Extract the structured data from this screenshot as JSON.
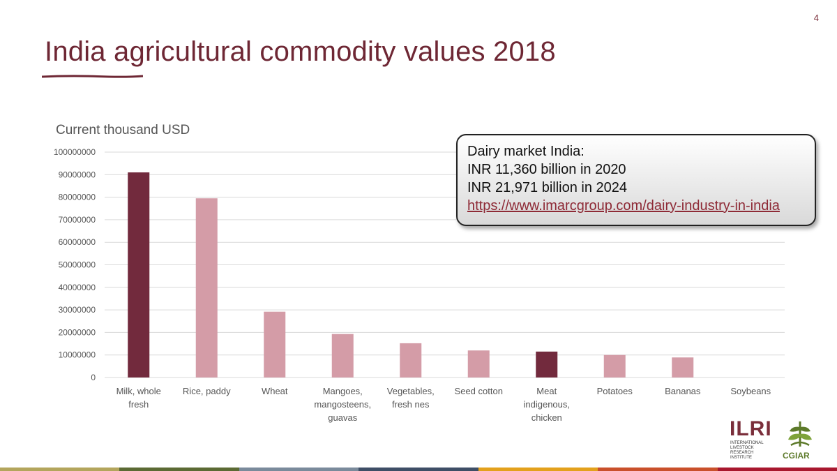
{
  "page_number": "4",
  "title": "India agricultural commodity values 2018",
  "chart_data": {
    "type": "bar",
    "title": "",
    "subtitle": "Current thousand USD",
    "ylim": [
      0,
      100000000
    ],
    "y_ticks": [
      "0",
      "10000000",
      "20000000",
      "30000000",
      "40000000",
      "50000000",
      "60000000",
      "70000000",
      "80000000",
      "90000000",
      "100000000"
    ],
    "grid": true,
    "categories": [
      [
        "Milk, whole",
        "fresh"
      ],
      [
        "Rice, paddy"
      ],
      [
        "Wheat"
      ],
      [
        "Mangoes,",
        "mangosteens,",
        "guavas"
      ],
      [
        "Vegetables,",
        "fresh nes"
      ],
      [
        "Seed cotton"
      ],
      [
        "Meat",
        "indigenous,",
        "chicken"
      ],
      [
        "Potatoes"
      ],
      [
        "Bananas"
      ],
      [
        "Soybeans"
      ]
    ],
    "values": [
      91000000,
      79500000,
      29200000,
      19300000,
      15200000,
      12000000,
      11500000,
      10000000,
      8900000,
      0
    ],
    "highlight": [
      true,
      false,
      false,
      false,
      false,
      false,
      true,
      false,
      false,
      false
    ],
    "colors": {
      "highlight": "#722a3d",
      "normal": "#d49ca7"
    }
  },
  "callout": {
    "line1": "Dairy market India:",
    "line2": "INR 11,360 billion in 2020",
    "line3": "INR 21,971 billion in 2024",
    "link": "https://www.imarcgroup.com/dairy-industry-in-india"
  },
  "logos": {
    "ilri": "ILRI",
    "ilri_sub": [
      "INTERNATIONAL",
      "LIVESTOCK RESEARCH",
      "INSTITUTE"
    ],
    "cgiar": "CGIAR"
  },
  "bottom_bar_colors": [
    "#b3a55c",
    "#5b6a34",
    "#7a8a9b",
    "#3e4e66",
    "#e3a11c",
    "#c9502b",
    "#a8172e"
  ]
}
